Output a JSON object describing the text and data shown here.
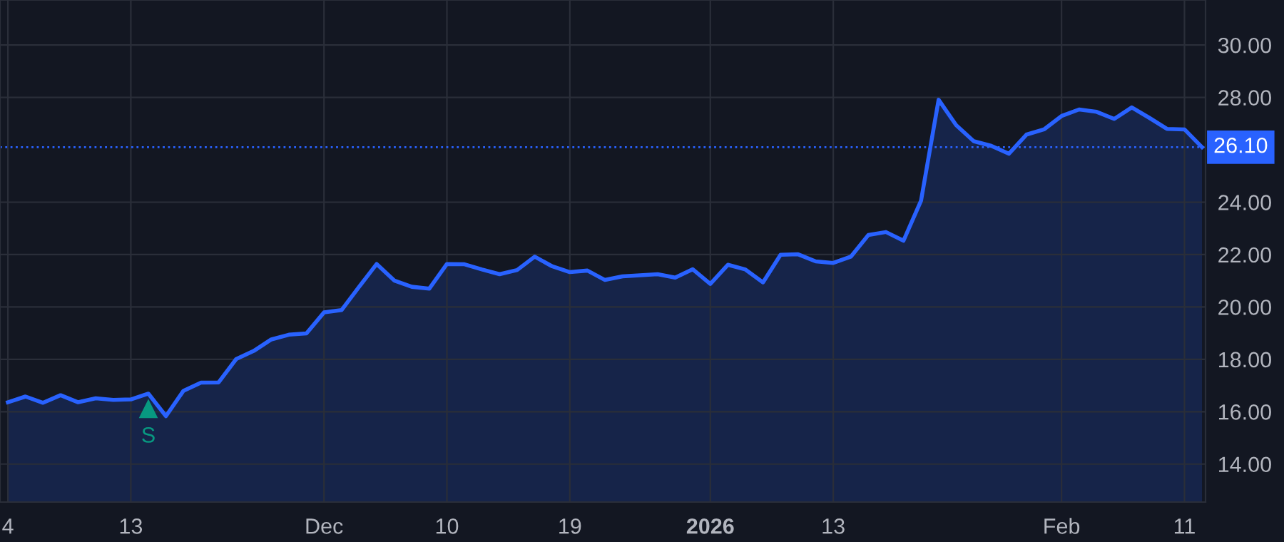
{
  "chart_data": {
    "type": "area",
    "categories": [
      "4",
      null,
      null,
      null,
      null,
      null,
      null,
      "13",
      null,
      null,
      null,
      null,
      null,
      null,
      null,
      null,
      null,
      null,
      "Dec",
      null,
      null,
      null,
      null,
      null,
      null,
      "10",
      null,
      null,
      null,
      null,
      null,
      null,
      "19",
      null,
      null,
      null,
      null,
      null,
      null,
      null,
      "2026",
      null,
      null,
      null,
      null,
      null,
      null,
      "13",
      null,
      null,
      null,
      null,
      null,
      null,
      null,
      null,
      null,
      null,
      null,
      null,
      "Feb",
      null,
      null,
      null,
      null,
      null,
      null,
      "11",
      null
    ],
    "series": [
      {
        "color": "#2962ff",
        "values": [
          16.36,
          16.58,
          16.34,
          16.63,
          16.36,
          16.51,
          16.45,
          16.47,
          16.69,
          15.83,
          16.8,
          17.11,
          17.12,
          18.01,
          18.32,
          18.76,
          18.94,
          18.99,
          19.79,
          19.88,
          20.77,
          21.64,
          21.01,
          20.77,
          20.7,
          21.64,
          21.63,
          21.43,
          21.25,
          21.41,
          21.92,
          21.55,
          21.33,
          21.39,
          21.03,
          21.17,
          21.21,
          21.25,
          21.12,
          21.44,
          20.88,
          21.61,
          21.43,
          20.94,
          21.99,
          22.01,
          21.74,
          21.68,
          21.92,
          22.75,
          22.86,
          22.53,
          24.06,
          27.91,
          26.94,
          26.33,
          26.15,
          25.85,
          26.58,
          26.78,
          27.29,
          27.54,
          27.45,
          27.18,
          27.62,
          27.22,
          26.8,
          26.78,
          26.1
        ]
      },
      {
        "type": "scatter",
        "name": "S",
        "color": "#089981",
        "marker": "triangle",
        "values": [
          null,
          null,
          null,
          null,
          null,
          null,
          null,
          null,
          16.1,
          null,
          null,
          null,
          null,
          null,
          null,
          null,
          null,
          null,
          null,
          null,
          null,
          null,
          null,
          null,
          null,
          null,
          null,
          null,
          null,
          null,
          null,
          null,
          null,
          null,
          null,
          null,
          null,
          null,
          null,
          null,
          null,
          null,
          null,
          null,
          null,
          null,
          null,
          null,
          null,
          null,
          null,
          null,
          null,
          null,
          null,
          null,
          null,
          null,
          null,
          null,
          null,
          null,
          null,
          null,
          null,
          null,
          null,
          null,
          null
        ]
      }
    ],
    "ylim": [
      12.55,
      31.72
    ],
    "yticks": [
      {
        "value": 14,
        "label": "14.00"
      },
      {
        "value": 16,
        "label": "16.00"
      },
      {
        "value": 18,
        "label": "18.00"
      },
      {
        "value": 20,
        "label": "20.00"
      },
      {
        "value": 22,
        "label": "22.00"
      },
      {
        "value": 24,
        "label": "24.00"
      },
      {
        "value": 28,
        "label": "28.00"
      },
      {
        "value": 30,
        "label": "30.00"
      }
    ],
    "ref_lines": [
      {
        "axis": "y",
        "value": 26.1,
        "label": "26.10",
        "color": "#2962ff",
        "line_style": "dotted"
      }
    ],
    "grid": true
  }
}
